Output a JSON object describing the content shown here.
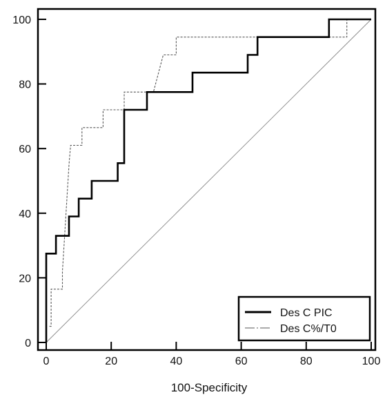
{
  "chart_data": {
    "type": "line",
    "title": "",
    "xlabel": "100-Specificity",
    "ylabel": "",
    "xlim": [
      0,
      100
    ],
    "ylim": [
      0,
      100
    ],
    "x_ticks": [
      "0",
      "20",
      "40",
      "60",
      "80",
      "100"
    ],
    "y_ticks": [
      "0",
      "20",
      "40",
      "60",
      "80",
      "100"
    ],
    "grid": false,
    "legend_position": "bottom-right",
    "series": [
      {
        "name": "Des C PIC",
        "style": "solid-thick",
        "color": "#000000",
        "x": [
          0,
          0,
          3,
          3,
          5,
          5,
          7,
          7,
          10,
          10,
          14,
          14,
          22,
          22,
          24,
          24,
          31,
          31,
          45,
          45,
          62,
          62,
          65,
          65,
          67,
          67,
          87,
          87,
          100
        ],
        "y": [
          0,
          27.5,
          27.5,
          33,
          33,
          33,
          33,
          39,
          39,
          44.5,
          44.5,
          50,
          50,
          55.5,
          55.5,
          72,
          72,
          77.5,
          77.5,
          83.5,
          83.5,
          89,
          89,
          94.5,
          94.5,
          94.5,
          94.5,
          100,
          100
        ]
      },
      {
        "name": "Des C%/T0",
        "style": "dashed-thin",
        "color": "#555555",
        "x": [
          1,
          1.5,
          1.5,
          5,
          5,
          7,
          7.5,
          11,
          11,
          14,
          14,
          17.5,
          17.5,
          24,
          24,
          33,
          36,
          36,
          40,
          40,
          92.5,
          92.5,
          100
        ],
        "y": [
          5,
          5,
          16.5,
          16.5,
          22,
          55,
          61,
          61,
          66.5,
          66.5,
          66.5,
          66.5,
          72,
          72,
          77.5,
          77.5,
          89,
          89,
          89,
          94.5,
          94.5,
          100,
          100
        ]
      },
      {
        "name": "",
        "style": "reference-diagonal",
        "color": "#888888",
        "x": [
          0,
          100
        ],
        "y": [
          0,
          100
        ]
      }
    ]
  }
}
